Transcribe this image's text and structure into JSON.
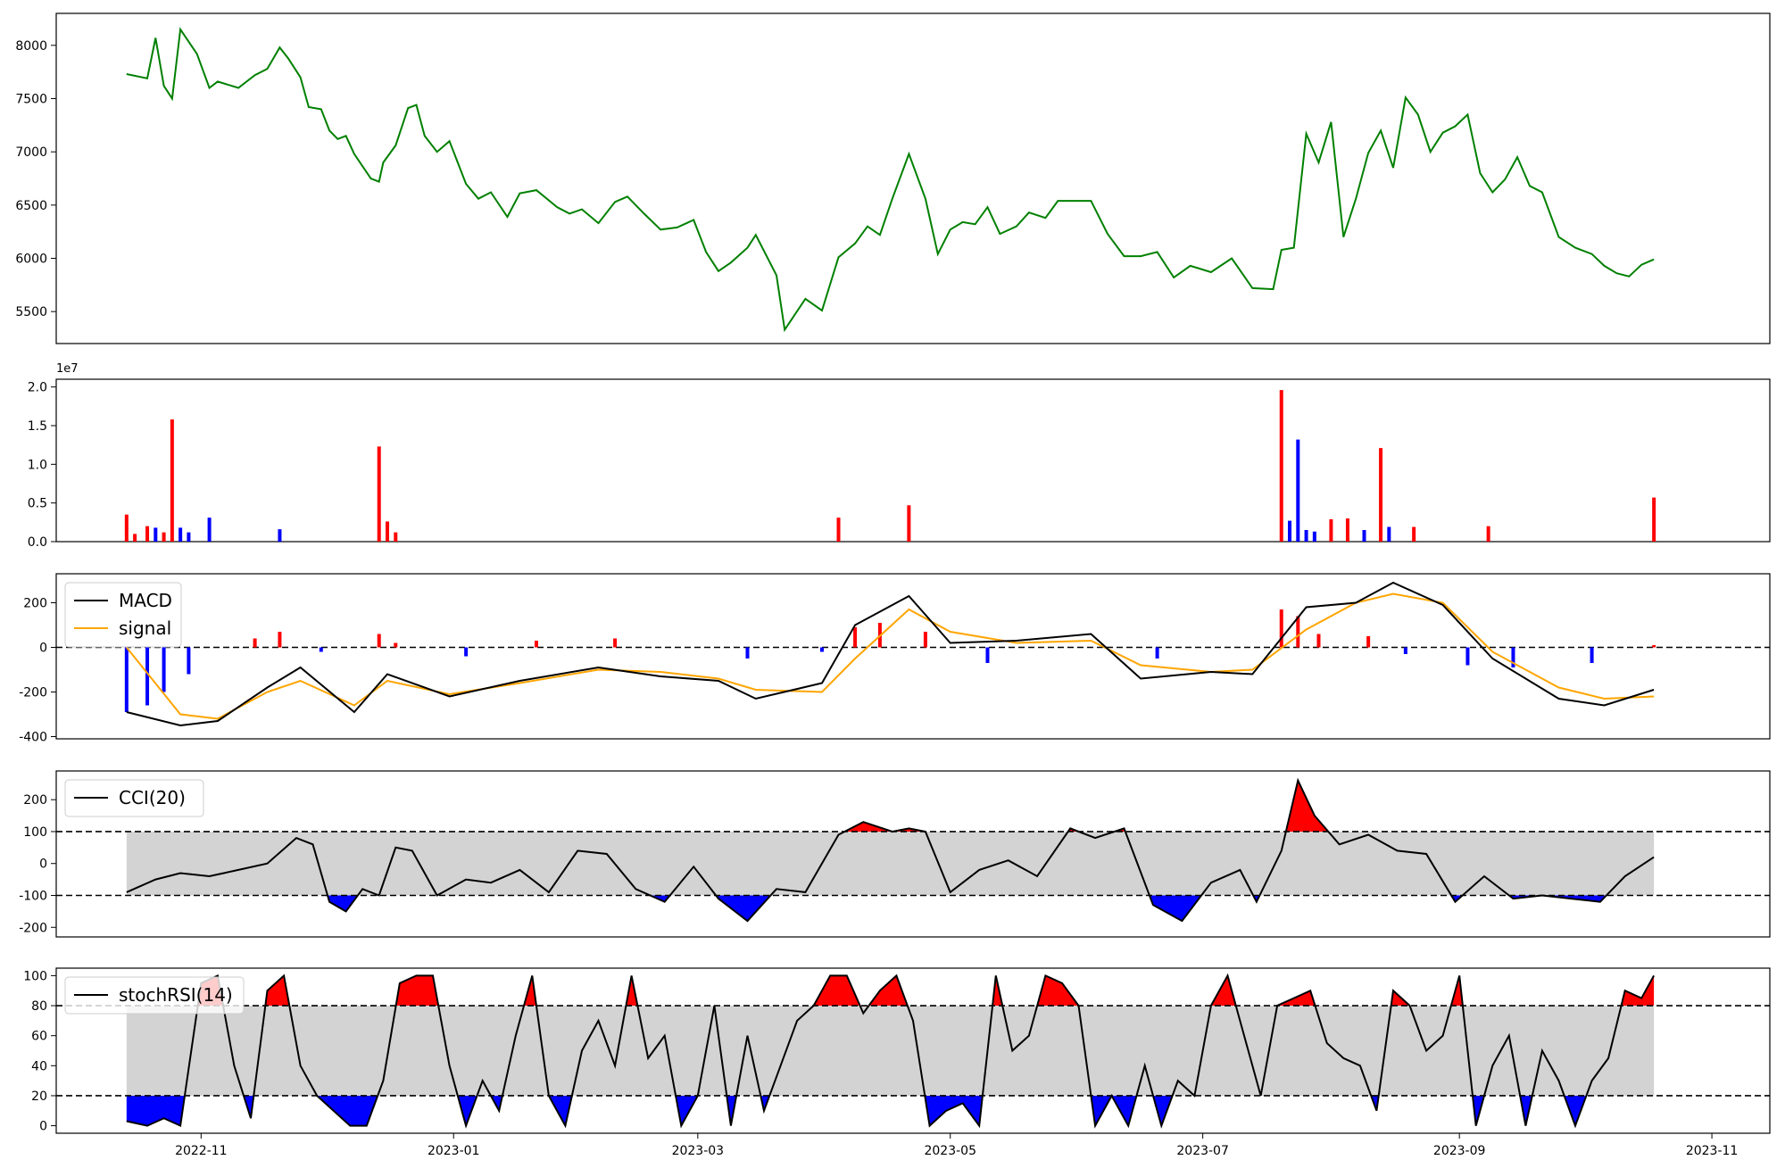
{
  "colors": {
    "price_line": "#008000",
    "up_bar": "#ff0000",
    "down_bar": "#0000ff",
    "macd_line": "#000000",
    "signal_line": "#ffa500",
    "band_fill": "#d3d3d3"
  },
  "x_axis": {
    "ticks": [
      "2022-11",
      "2023-01",
      "2023-03",
      "2023-05",
      "2023-07",
      "2023-09",
      "2023-11"
    ]
  },
  "chart_data": [
    {
      "type": "line",
      "panel": "price",
      "x_range": [
        "2022-10-14",
        "2023-10-18"
      ],
      "ylim": [
        5200,
        8300
      ],
      "yticks": [
        "5500",
        "6000",
        "6500",
        "7000",
        "7500",
        "8000"
      ],
      "x": [
        "2022-10-14",
        "2022-10-19",
        "2022-10-21",
        "2022-10-23",
        "2022-10-25",
        "2022-10-27",
        "2022-10-31",
        "2022-11-03",
        "2022-11-05",
        "2022-11-10",
        "2022-11-14",
        "2022-11-17",
        "2022-11-20",
        "2022-11-22",
        "2022-11-25",
        "2022-11-27",
        "2022-11-30",
        "2022-12-02",
        "2022-12-04",
        "2022-12-06",
        "2022-12-08",
        "2022-12-12",
        "2022-12-14",
        "2022-12-15",
        "2022-12-18",
        "2022-12-21",
        "2022-12-23",
        "2022-12-25",
        "2022-12-28",
        "2022-12-31",
        "2023-01-04",
        "2023-01-07",
        "2023-01-10",
        "2023-01-14",
        "2023-01-17",
        "2023-01-21",
        "2023-01-26",
        "2023-01-29",
        "2023-02-01",
        "2023-02-05",
        "2023-02-09",
        "2023-02-12",
        "2023-02-16",
        "2023-02-20",
        "2023-02-24",
        "2023-02-28",
        "2023-03-03",
        "2023-03-06",
        "2023-03-09",
        "2023-03-13",
        "2023-03-15",
        "2023-03-20",
        "2023-03-22",
        "2023-03-27",
        "2023-03-31",
        "2023-04-04",
        "2023-04-08",
        "2023-04-11",
        "2023-04-14",
        "2023-04-17",
        "2023-04-21",
        "2023-04-25",
        "2023-04-28",
        "2023-05-01",
        "2023-05-04",
        "2023-05-07",
        "2023-05-10",
        "2023-05-13",
        "2023-05-17",
        "2023-05-20",
        "2023-05-24",
        "2023-05-27",
        "2023-05-30",
        "2023-06-04",
        "2023-06-08",
        "2023-06-12",
        "2023-06-16",
        "2023-06-20",
        "2023-06-24",
        "2023-06-28",
        "2023-07-03",
        "2023-07-08",
        "2023-07-13",
        "2023-07-18",
        "2023-07-20",
        "2023-07-23",
        "2023-07-26",
        "2023-07-29",
        "2023-08-01",
        "2023-08-04",
        "2023-08-07",
        "2023-08-10",
        "2023-08-13",
        "2023-08-16",
        "2023-08-19",
        "2023-08-22",
        "2023-08-25",
        "2023-08-28",
        "2023-08-31",
        "2023-09-03",
        "2023-09-06",
        "2023-09-09",
        "2023-09-12",
        "2023-09-15",
        "2023-09-18",
        "2023-09-21",
        "2023-09-25",
        "2023-09-29",
        "2023-10-03",
        "2023-10-06",
        "2023-10-09",
        "2023-10-12",
        "2023-10-15",
        "2023-10-18"
      ],
      "y": [
        7730,
        7690,
        8070,
        7620,
        7500,
        8150,
        7920,
        7600,
        7660,
        7600,
        7720,
        7780,
        7980,
        7880,
        7700,
        7420,
        7400,
        7200,
        7120,
        7150,
        6980,
        6750,
        6720,
        6900,
        7060,
        7410,
        7440,
        7150,
        7000,
        7100,
        6700,
        6560,
        6620,
        6390,
        6610,
        6640,
        6480,
        6420,
        6460,
        6330,
        6530,
        6580,
        6420,
        6270,
        6290,
        6360,
        6060,
        5880,
        5960,
        6100,
        6220,
        5840,
        5330,
        5620,
        5510,
        6010,
        6140,
        6300,
        6220,
        6560,
        6980,
        6560,
        6040,
        6270,
        6340,
        6320,
        6480,
        6230,
        6300,
        6430,
        6380,
        6540,
        6540,
        6540,
        6230,
        6020,
        6020,
        6060,
        5820,
        5930,
        5870,
        6000,
        5720,
        5710,
        6080,
        6100,
        7170,
        6900,
        7280,
        6200,
        6560,
        6990,
        7200,
        6850,
        7510,
        7350,
        7000,
        7180,
        7240,
        7350,
        6800,
        6620,
        6740,
        6950,
        6680,
        6620,
        6200,
        6100,
        6040,
        5930,
        5860,
        5830,
        5940,
        5990
      ]
    },
    {
      "type": "bar",
      "panel": "volume",
      "ylim": [
        0,
        2.1
      ],
      "yticks": [
        "0.0",
        "0.5",
        "1.0",
        "1.5",
        "2.0"
      ],
      "offset_label": "1e7",
      "units": "x1e7",
      "x": [
        "2022-10-14",
        "2022-10-16",
        "2022-10-19",
        "2022-10-21",
        "2022-10-23",
        "2022-10-25",
        "2022-10-27",
        "2022-10-29",
        "2022-11-03",
        "2022-11-20",
        "2022-12-14",
        "2022-12-16",
        "2022-12-18",
        "2023-04-04",
        "2023-04-21",
        "2023-07-20",
        "2023-07-22",
        "2023-07-24",
        "2023-07-26",
        "2023-07-28",
        "2023-08-01",
        "2023-08-05",
        "2023-08-09",
        "2023-08-13",
        "2023-08-15",
        "2023-08-21",
        "2023-09-08",
        "2023-10-18"
      ],
      "values": [
        0.35,
        0.1,
        0.2,
        0.18,
        0.12,
        1.58,
        0.18,
        0.12,
        0.31,
        0.16,
        1.23,
        0.26,
        0.12,
        0.31,
        0.47,
        1.96,
        0.27,
        1.32,
        0.15,
        0.13,
        0.29,
        0.3,
        0.15,
        1.21,
        0.19,
        0.19,
        0.2,
        0.57
      ],
      "direction": [
        "up",
        "up",
        "up",
        "down",
        "up",
        "up",
        "down",
        "down",
        "down",
        "down",
        "up",
        "up",
        "up",
        "up",
        "up",
        "up",
        "down",
        "down",
        "down",
        "down",
        "up",
        "up",
        "down",
        "up",
        "down",
        "up",
        "up",
        "up"
      ]
    },
    {
      "type": "line",
      "panel": "macd",
      "ylim": [
        -410,
        330
      ],
      "yticks": [
        "-400",
        "-200",
        "0",
        "200"
      ],
      "legend": [
        "MACD",
        "signal"
      ],
      "series": [
        {
          "name": "MACD",
          "x": [
            "2022-10-14",
            "2022-10-27",
            "2022-11-05",
            "2022-11-17",
            "2022-11-25",
            "2022-12-08",
            "2022-12-16",
            "2022-12-31",
            "2023-01-17",
            "2023-02-05",
            "2023-02-20",
            "2023-03-06",
            "2023-03-15",
            "2023-03-31",
            "2023-04-08",
            "2023-04-21",
            "2023-05-01",
            "2023-05-17",
            "2023-06-04",
            "2023-06-16",
            "2023-07-03",
            "2023-07-13",
            "2023-07-26",
            "2023-08-07",
            "2023-08-16",
            "2023-08-28",
            "2023-09-09",
            "2023-09-25",
            "2023-10-06",
            "2023-10-18"
          ],
          "values": [
            -290,
            -350,
            -330,
            -180,
            -90,
            -290,
            -120,
            -220,
            -150,
            -90,
            -130,
            -150,
            -230,
            -160,
            100,
            230,
            20,
            30,
            60,
            -140,
            -110,
            -120,
            180,
            200,
            290,
            190,
            -50,
            -230,
            -260,
            -190
          ]
        },
        {
          "name": "signal",
          "x": [
            "2022-10-14",
            "2022-10-27",
            "2022-11-05",
            "2022-11-17",
            "2022-11-25",
            "2022-12-08",
            "2022-12-16",
            "2022-12-31",
            "2023-01-17",
            "2023-02-05",
            "2023-02-20",
            "2023-03-06",
            "2023-03-15",
            "2023-03-31",
            "2023-04-08",
            "2023-04-21",
            "2023-05-01",
            "2023-05-17",
            "2023-06-04",
            "2023-06-16",
            "2023-07-03",
            "2023-07-13",
            "2023-07-26",
            "2023-08-07",
            "2023-08-16",
            "2023-08-28",
            "2023-09-09",
            "2023-09-25",
            "2023-10-06",
            "2023-10-18"
          ],
          "values": [
            0,
            -300,
            -320,
            -200,
            -150,
            -260,
            -150,
            -210,
            -160,
            -100,
            -110,
            -140,
            -190,
            -200,
            -50,
            170,
            70,
            20,
            30,
            -80,
            -110,
            -100,
            80,
            200,
            240,
            200,
            -20,
            -180,
            -230,
            -220
          ]
        }
      ],
      "histogram": {
        "x": [
          "2022-10-14",
          "2022-10-19",
          "2022-10-23",
          "2022-10-29",
          "2022-11-14",
          "2022-11-20",
          "2022-11-30",
          "2022-12-14",
          "2022-12-18",
          "2023-01-04",
          "2023-01-21",
          "2023-02-09",
          "2023-03-13",
          "2023-03-31",
          "2023-04-08",
          "2023-04-14",
          "2023-04-25",
          "2023-05-10",
          "2023-06-20",
          "2023-07-20",
          "2023-07-24",
          "2023-07-29",
          "2023-08-10",
          "2023-08-19",
          "2023-09-03",
          "2023-09-14",
          "2023-10-03",
          "2023-10-18"
        ],
        "values": [
          -290,
          -260,
          -200,
          -120,
          40,
          70,
          -20,
          60,
          20,
          -40,
          30,
          40,
          -50,
          -20,
          90,
          110,
          70,
          -70,
          -50,
          170,
          140,
          60,
          50,
          -30,
          -80,
          -90,
          -70,
          10
        ]
      }
    },
    {
      "type": "line",
      "panel": "cci",
      "ylim": [
        -230,
        290
      ],
      "yticks": [
        "-200",
        "-100",
        "0",
        "100",
        "200"
      ],
      "legend": [
        "CCI(20)"
      ],
      "thresholds": [
        100,
        -100
      ],
      "x": [
        "2022-10-14",
        "2022-10-21",
        "2022-10-27",
        "2022-11-03",
        "2022-11-10",
        "2022-11-17",
        "2022-11-24",
        "2022-11-28",
        "2022-12-02",
        "2022-12-06",
        "2022-12-10",
        "2022-12-14",
        "2022-12-18",
        "2022-12-22",
        "2022-12-28",
        "2023-01-04",
        "2023-01-10",
        "2023-01-17",
        "2023-01-24",
        "2023-01-31",
        "2023-02-07",
        "2023-02-14",
        "2023-02-21",
        "2023-02-28",
        "2023-03-06",
        "2023-03-13",
        "2023-03-20",
        "2023-03-27",
        "2023-04-04",
        "2023-04-10",
        "2023-04-17",
        "2023-04-21",
        "2023-04-25",
        "2023-05-01",
        "2023-05-08",
        "2023-05-15",
        "2023-05-22",
        "2023-05-30",
        "2023-06-05",
        "2023-06-12",
        "2023-06-19",
        "2023-06-26",
        "2023-07-03",
        "2023-07-10",
        "2023-07-14",
        "2023-07-20",
        "2023-07-24",
        "2023-07-28",
        "2023-08-03",
        "2023-08-10",
        "2023-08-17",
        "2023-08-24",
        "2023-08-31",
        "2023-09-07",
        "2023-09-14",
        "2023-09-21",
        "2023-09-28",
        "2023-10-05",
        "2023-10-11",
        "2023-10-18"
      ],
      "values": [
        -90,
        -50,
        -30,
        -40,
        -20,
        0,
        80,
        60,
        -120,
        -150,
        -80,
        -100,
        50,
        40,
        -100,
        -50,
        -60,
        -20,
        -90,
        40,
        30,
        -80,
        -120,
        -10,
        -110,
        -180,
        -80,
        -90,
        90,
        130,
        100,
        110,
        100,
        -90,
        -20,
        10,
        -40,
        110,
        80,
        110,
        -130,
        -180,
        -60,
        -20,
        -120,
        40,
        260,
        150,
        60,
        90,
        40,
        30,
        -120,
        -40,
        -110,
        -100,
        -110,
        -120,
        -40,
        20
      ]
    },
    {
      "type": "line",
      "panel": "stochrsi",
      "ylim": [
        -5,
        105
      ],
      "yticks": [
        "0",
        "20",
        "40",
        "60",
        "80",
        "100"
      ],
      "legend": [
        "stochRSI(14)"
      ],
      "thresholds": [
        80,
        20
      ],
      "x": [
        "2022-10-14",
        "2022-10-19",
        "2022-10-23",
        "2022-10-27",
        "2022-11-01",
        "2022-11-05",
        "2022-11-09",
        "2022-11-13",
        "2022-11-17",
        "2022-11-21",
        "2022-11-25",
        "2022-11-29",
        "2022-12-03",
        "2022-12-07",
        "2022-12-11",
        "2022-12-15",
        "2022-12-19",
        "2022-12-23",
        "2022-12-27",
        "2022-12-31",
        "2023-01-04",
        "2023-01-08",
        "2023-01-12",
        "2023-01-16",
        "2023-01-20",
        "2023-01-24",
        "2023-01-28",
        "2023-02-01",
        "2023-02-05",
        "2023-02-09",
        "2023-02-13",
        "2023-02-17",
        "2023-02-21",
        "2023-02-25",
        "2023-03-01",
        "2023-03-05",
        "2023-03-09",
        "2023-03-13",
        "2023-03-17",
        "2023-03-21",
        "2023-03-25",
        "2023-03-29",
        "2023-04-02",
        "2023-04-06",
        "2023-04-10",
        "2023-04-14",
        "2023-04-18",
        "2023-04-22",
        "2023-04-26",
        "2023-04-30",
        "2023-05-04",
        "2023-05-08",
        "2023-05-12",
        "2023-05-16",
        "2023-05-20",
        "2023-05-24",
        "2023-05-28",
        "2023-06-01",
        "2023-06-05",
        "2023-06-09",
        "2023-06-13",
        "2023-06-17",
        "2023-06-21",
        "2023-06-25",
        "2023-06-29",
        "2023-07-03",
        "2023-07-07",
        "2023-07-11",
        "2023-07-15",
        "2023-07-19",
        "2023-07-23",
        "2023-07-27",
        "2023-07-31",
        "2023-08-04",
        "2023-08-08",
        "2023-08-12",
        "2023-08-16",
        "2023-08-20",
        "2023-08-24",
        "2023-08-28",
        "2023-09-01",
        "2023-09-05",
        "2023-09-09",
        "2023-09-13",
        "2023-09-17",
        "2023-09-21",
        "2023-09-25",
        "2023-09-29",
        "2023-10-03",
        "2023-10-07",
        "2023-10-11",
        "2023-10-15",
        "2023-10-18"
      ],
      "values": [
        3,
        0,
        5,
        0,
        95,
        100,
        40,
        5,
        90,
        100,
        40,
        20,
        10,
        0,
        0,
        30,
        95,
        100,
        100,
        40,
        0,
        30,
        10,
        60,
        100,
        20,
        0,
        50,
        70,
        40,
        100,
        45,
        60,
        0,
        20,
        80,
        0,
        60,
        10,
        40,
        70,
        80,
        100,
        100,
        75,
        90,
        100,
        70,
        0,
        10,
        15,
        0,
        100,
        50,
        60,
        100,
        95,
        80,
        0,
        20,
        0,
        40,
        0,
        30,
        20,
        80,
        100,
        60,
        20,
        80,
        85,
        90,
        55,
        45,
        40,
        10,
        90,
        80,
        50,
        60,
        100,
        0,
        40,
        60,
        0,
        50,
        30,
        0,
        30,
        45,
        90,
        85,
        100
      ]
    }
  ]
}
